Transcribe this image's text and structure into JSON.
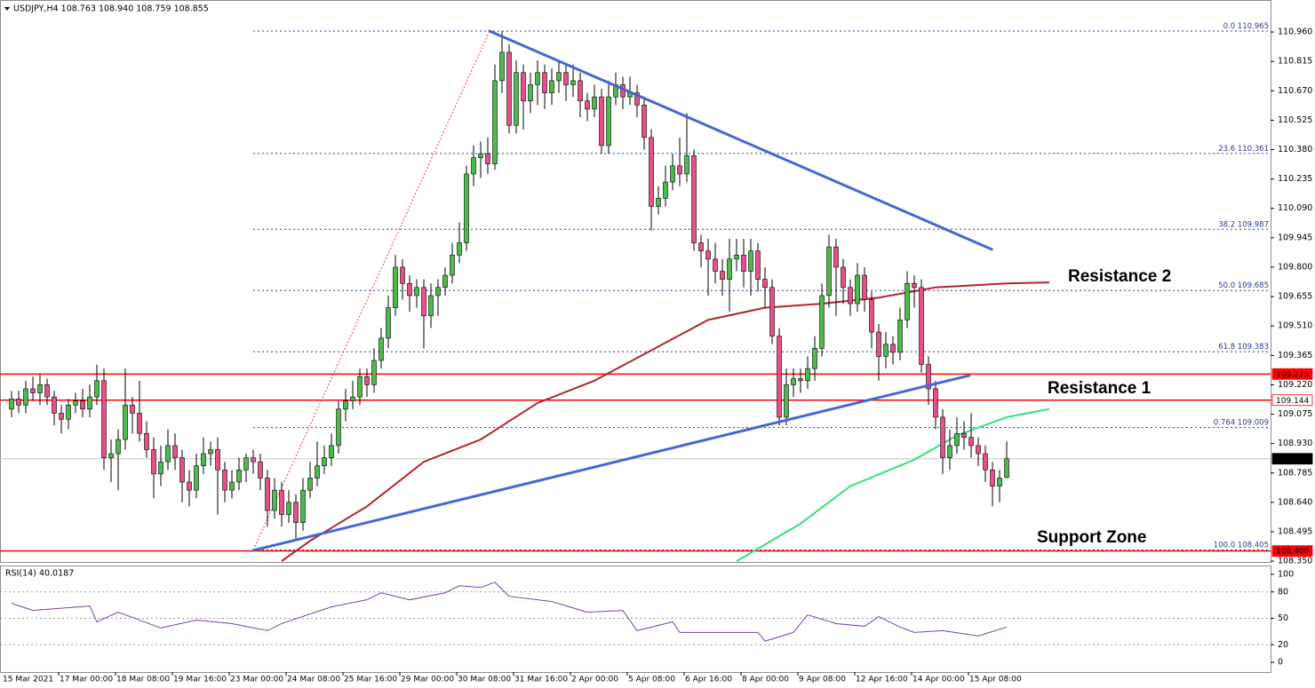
{
  "chart_data": {
    "type": "candlestick",
    "title": "USDJPY,H4 108.763 108.940 108.759 108.855",
    "ylim": [
      108.346,
      111.118
    ],
    "yticks": [
      {
        "value": 110.96,
        "label": "110.960"
      },
      110.815,
      {
        "value": 110.67,
        "label": "110.670"
      },
      110.525,
      {
        "value": 110.38,
        "label": "110.380"
      },
      110.235,
      {
        "value": 110.09,
        "label": "110.090"
      },
      109.945,
      {
        "value": 109.8,
        "label": "109.800"
      },
      109.655,
      {
        "value": 109.51,
        "label": "109.510"
      },
      109.365,
      {
        "value": 109.22,
        "label": "109.220"
      },
      109.075,
      {
        "value": 108.93,
        "label": "108.930"
      },
      108.785,
      {
        "value": 108.64,
        "label": "108.640"
      },
      108.495,
      {
        "value": 108.35,
        "label": "108.350"
      }
    ],
    "up_color": "#4cbb4c",
    "down_color": "#e8508a",
    "candles": [
      [
        109.1,
        109.19,
        109.06,
        109.15
      ],
      [
        109.15,
        109.19,
        109.08,
        109.12
      ],
      [
        109.12,
        109.24,
        109.08,
        109.2
      ],
      [
        109.2,
        109.26,
        109.14,
        109.18
      ],
      [
        109.18,
        109.27,
        109.12,
        109.22
      ],
      [
        109.22,
        109.25,
        109.12,
        109.16
      ],
      [
        109.16,
        109.19,
        109.02,
        109.08
      ],
      [
        109.08,
        109.12,
        108.98,
        109.05
      ],
      [
        109.05,
        109.15,
        109.0,
        109.12
      ],
      [
        109.12,
        109.18,
        109.08,
        109.14
      ],
      [
        109.14,
        109.2,
        109.06,
        109.1
      ],
      [
        109.1,
        109.22,
        109.06,
        109.16
      ],
      [
        109.16,
        109.32,
        109.12,
        109.24
      ],
      [
        109.24,
        109.3,
        108.8,
        108.86
      ],
      [
        108.86,
        108.95,
        108.74,
        108.88
      ],
      [
        108.88,
        109.0,
        108.7,
        108.95
      ],
      [
        108.95,
        109.3,
        108.9,
        109.12
      ],
      [
        109.12,
        109.16,
        108.98,
        109.08
      ],
      [
        109.08,
        109.24,
        108.94,
        108.98
      ],
      [
        108.98,
        109.04,
        108.86,
        108.9
      ],
      [
        108.9,
        108.96,
        108.66,
        108.78
      ],
      [
        108.78,
        108.92,
        108.72,
        108.84
      ],
      [
        108.84,
        109.0,
        108.8,
        108.92
      ],
      [
        108.92,
        108.98,
        108.8,
        108.86
      ],
      [
        108.86,
        108.9,
        108.64,
        108.74
      ],
      [
        108.74,
        108.8,
        108.62,
        108.7
      ],
      [
        108.7,
        108.88,
        108.66,
        108.82
      ],
      [
        108.82,
        108.96,
        108.78,
        108.88
      ],
      [
        108.88,
        108.94,
        108.82,
        108.9
      ],
      [
        108.9,
        108.96,
        108.58,
        108.8
      ],
      [
        108.8,
        108.84,
        108.64,
        108.7
      ],
      [
        108.7,
        108.8,
        108.66,
        108.74
      ],
      [
        108.74,
        108.86,
        108.7,
        108.8
      ],
      [
        108.8,
        108.88,
        108.74,
        108.86
      ],
      [
        108.86,
        108.9,
        108.78,
        108.84
      ],
      [
        108.84,
        108.88,
        108.7,
        108.76
      ],
      [
        108.76,
        108.8,
        108.52,
        108.6
      ],
      [
        108.6,
        108.76,
        108.56,
        108.7
      ],
      [
        108.7,
        108.74,
        108.52,
        108.58
      ],
      [
        108.58,
        108.7,
        108.54,
        108.64
      ],
      [
        108.64,
        108.68,
        108.46,
        108.54
      ],
      [
        108.54,
        108.76,
        108.5,
        108.7
      ],
      [
        108.7,
        108.84,
        108.66,
        108.76
      ],
      [
        108.76,
        108.94,
        108.72,
        108.82
      ],
      [
        108.82,
        108.92,
        108.78,
        108.86
      ],
      [
        108.86,
        108.98,
        108.82,
        108.92
      ],
      [
        108.92,
        109.14,
        108.88,
        109.1
      ],
      [
        109.1,
        109.2,
        109.04,
        109.14
      ],
      [
        109.14,
        109.24,
        109.1,
        109.16
      ],
      [
        109.16,
        109.3,
        109.12,
        109.26
      ],
      [
        109.26,
        109.3,
        109.16,
        109.22
      ],
      [
        109.22,
        109.4,
        109.18,
        109.34
      ],
      [
        109.34,
        109.5,
        109.3,
        109.45
      ],
      [
        109.45,
        109.66,
        109.4,
        109.6
      ],
      [
        109.6,
        109.86,
        109.56,
        109.8
      ],
      [
        109.8,
        109.84,
        109.64,
        109.72
      ],
      [
        109.72,
        109.76,
        109.58,
        109.66
      ],
      [
        109.66,
        109.74,
        109.6,
        109.7
      ],
      [
        109.7,
        109.74,
        109.4,
        109.56
      ],
      [
        109.56,
        109.72,
        109.5,
        109.66
      ],
      [
        109.66,
        109.74,
        109.56,
        109.7
      ],
      [
        109.7,
        109.8,
        109.66,
        109.76
      ],
      [
        109.76,
        109.92,
        109.72,
        109.86
      ],
      [
        109.86,
        110.02,
        109.82,
        109.92
      ],
      [
        109.92,
        110.3,
        109.88,
        110.26
      ],
      [
        110.26,
        110.4,
        110.2,
        110.34
      ],
      [
        110.34,
        110.42,
        110.24,
        110.36
      ],
      [
        110.36,
        110.44,
        110.26,
        110.31
      ],
      [
        110.31,
        110.8,
        110.28,
        110.72
      ],
      [
        110.72,
        110.965,
        110.66,
        110.86
      ],
      [
        110.86,
        110.9,
        110.46,
        110.5
      ],
      [
        110.5,
        110.82,
        110.46,
        110.76
      ],
      [
        110.76,
        110.8,
        110.48,
        110.62
      ],
      [
        110.62,
        110.76,
        110.56,
        110.7
      ],
      [
        110.7,
        110.82,
        110.6,
        110.76
      ],
      [
        110.76,
        110.8,
        110.58,
        110.66
      ],
      [
        110.66,
        110.78,
        110.6,
        110.72
      ],
      [
        110.72,
        110.82,
        110.66,
        110.76
      ],
      [
        110.76,
        110.8,
        110.62,
        110.7
      ],
      [
        110.7,
        110.8,
        110.64,
        110.72
      ],
      [
        110.72,
        110.76,
        110.54,
        110.62
      ],
      [
        110.62,
        110.66,
        110.52,
        110.58
      ],
      [
        110.58,
        110.7,
        110.54,
        110.64
      ],
      [
        110.64,
        110.68,
        110.36,
        110.4
      ],
      [
        110.4,
        110.72,
        110.36,
        110.64
      ],
      [
        110.64,
        110.76,
        110.6,
        110.7
      ],
      [
        110.7,
        110.74,
        110.58,
        110.64
      ],
      [
        110.64,
        110.74,
        110.6,
        110.66
      ],
      [
        110.66,
        110.7,
        110.54,
        110.6
      ],
      [
        110.6,
        110.64,
        110.38,
        110.44
      ],
      [
        110.44,
        110.48,
        109.98,
        110.1
      ],
      [
        110.1,
        110.2,
        110.06,
        110.14
      ],
      [
        110.14,
        110.3,
        110.1,
        110.22
      ],
      [
        110.22,
        110.36,
        110.18,
        110.3
      ],
      [
        110.3,
        110.44,
        110.2,
        110.26
      ],
      [
        110.26,
        110.56,
        110.22,
        110.35
      ],
      [
        110.35,
        110.38,
        109.88,
        109.92
      ],
      [
        109.92,
        109.96,
        109.8,
        109.88
      ],
      [
        109.88,
        109.94,
        109.66,
        109.84
      ],
      [
        109.84,
        109.92,
        109.72,
        109.78
      ],
      [
        109.78,
        109.84,
        109.66,
        109.74
      ],
      [
        109.74,
        109.94,
        109.58,
        109.84
      ],
      [
        109.84,
        109.94,
        109.78,
        109.86
      ],
      [
        109.86,
        109.94,
        109.7,
        109.78
      ],
      [
        109.78,
        109.94,
        109.66,
        109.88
      ],
      [
        109.88,
        109.92,
        109.68,
        109.74
      ],
      [
        109.74,
        109.8,
        109.6,
        109.7
      ],
      [
        109.7,
        109.74,
        109.42,
        109.46
      ],
      [
        109.46,
        109.5,
        109.02,
        109.06
      ],
      [
        109.06,
        109.3,
        109.02,
        109.22
      ],
      [
        109.22,
        109.3,
        109.16,
        109.25
      ],
      [
        109.25,
        109.3,
        109.18,
        109.24
      ],
      [
        109.24,
        109.36,
        109.2,
        109.3
      ],
      [
        109.3,
        109.46,
        109.24,
        109.4
      ],
      [
        109.4,
        109.72,
        109.36,
        109.66
      ],
      [
        109.66,
        109.96,
        109.6,
        109.9
      ],
      [
        109.9,
        109.94,
        109.56,
        109.8
      ],
      [
        109.8,
        109.84,
        109.62,
        109.7
      ],
      [
        109.7,
        109.74,
        109.56,
        109.62
      ],
      [
        109.62,
        109.82,
        109.58,
        109.76
      ],
      [
        109.76,
        109.8,
        109.58,
        109.64
      ],
      [
        109.64,
        109.68,
        109.4,
        109.48
      ],
      [
        109.48,
        109.52,
        109.24,
        109.36
      ],
      [
        109.36,
        109.48,
        109.3,
        109.42
      ],
      [
        109.42,
        109.46,
        109.32,
        109.38
      ],
      [
        109.38,
        109.6,
        109.34,
        109.54
      ],
      [
        109.54,
        109.78,
        109.5,
        109.72
      ],
      [
        109.72,
        109.76,
        109.6,
        109.7
      ],
      [
        109.7,
        109.74,
        109.28,
        109.32
      ],
      [
        109.32,
        109.36,
        109.12,
        109.2
      ],
      [
        109.2,
        109.24,
        109.0,
        109.06
      ],
      [
        109.06,
        109.1,
        108.78,
        108.86
      ],
      [
        108.86,
        109.0,
        108.8,
        108.92
      ],
      [
        108.92,
        109.06,
        108.88,
        108.98
      ],
      [
        108.98,
        109.04,
        108.9,
        108.96
      ],
      [
        108.96,
        109.08,
        108.86,
        108.92
      ],
      [
        108.92,
        108.96,
        108.82,
        108.88
      ],
      [
        108.88,
        108.92,
        108.74,
        108.8
      ],
      [
        108.8,
        108.84,
        108.62,
        108.72
      ],
      [
        108.72,
        108.8,
        108.64,
        108.76
      ],
      [
        108.763,
        108.94,
        108.759,
        108.855
      ]
    ],
    "moving_averages": [
      {
        "color": "#b0262a",
        "points": [
          [
            38,
            108.35
          ],
          [
            42,
            108.45
          ],
          [
            50,
            108.62
          ],
          [
            58,
            108.84
          ],
          [
            66,
            108.95
          ],
          [
            74,
            109.13
          ],
          [
            82,
            109.24
          ],
          [
            90,
            109.39
          ],
          [
            98,
            109.54
          ],
          [
            106,
            109.6
          ],
          [
            114,
            109.62
          ],
          [
            122,
            109.65
          ],
          [
            130,
            109.7
          ],
          [
            140,
            109.72
          ],
          [
            146,
            109.725
          ]
        ]
      },
      {
        "color": "#33e07a",
        "points": [
          [
            102,
            108.35
          ],
          [
            111,
            108.535
          ],
          [
            118,
            108.72
          ],
          [
            127,
            108.85
          ],
          [
            133,
            108.97
          ],
          [
            140,
            109.06
          ],
          [
            146,
            109.1
          ]
        ]
      }
    ],
    "trendlines": [
      {
        "color": "#4666d4",
        "from": [
          67.25,
          110.965
        ],
        "to": [
          137.9,
          109.888
        ]
      },
      {
        "color": "#4666d4",
        "from": [
          34,
          108.403
        ],
        "to": [
          134.75,
          109.266
        ]
      }
    ],
    "fib_line": {
      "color": "#e04040",
      "from": [
        34,
        108.405
      ],
      "to": [
        67.25,
        110.965
      ]
    },
    "fib_color": "#2b3a8c",
    "fib_levels": [
      {
        "level": "0.0",
        "price": 110.965
      },
      {
        "level": "23.6",
        "price": 110.361
      },
      {
        "level": "38.2",
        "price": 109.987
      },
      {
        "level": "50.0",
        "price": 109.685
      },
      {
        "level": "61.8",
        "price": 109.383
      },
      {
        "level": "0.764",
        "price": 109.009
      },
      {
        "level": "100.0",
        "price": 108.405
      }
    ],
    "price_tags": [
      {
        "tick": 109.273,
        "bg": "#ff0000",
        "fg": "#ffffff",
        "line": "#ff0000"
      },
      {
        "tick": 109.144,
        "bg": "#ffffff",
        "fg": "#000000",
        "line": "#ff0000"
      },
      {
        "tick": 108.855,
        "bg": "#000000",
        "fg": "#ffffff",
        "line": "#c8c8c8"
      },
      {
        "tick": {
          "value": 108.4,
          "label": "108.400"
        },
        "bg": "#ff0000",
        "fg": "#ffffff",
        "line": "#ff0000"
      }
    ],
    "annotations": [
      {
        "text": "Resistance 2",
        "color": "#e8322d"
      },
      {
        "text": "Resistance 1",
        "color": "#e8322d"
      },
      {
        "text": "Support Zone",
        "color": "#2db34a"
      }
    ],
    "xlabels": [
      "15 Mar 2021",
      "17 Mar 00:00",
      "18 Mar 08:00",
      "19 Mar 16:00",
      "23 Mar 00:00",
      "24 Mar 08:00",
      "25 Mar 16:00",
      "29 Mar 00:00",
      "30 Mar 08:00",
      "31 Mar 16:00",
      "2 Apr 00:00",
      "5 Apr 08:00",
      "6 Apr 16:00",
      "8 Apr 00:00",
      "9 Apr 08:00",
      "12 Apr 16:00",
      "14 Apr 00:00",
      "15 Apr 08:00"
    ],
    "rsi": {
      "title": "RSI(14) 40.0187",
      "color": "#7a3fa6",
      "ylim": [
        -11,
        110
      ],
      "yticks": [
        100,
        80,
        50,
        20,
        0
      ],
      "levels": [
        80,
        50,
        20
      ],
      "points": [
        [
          0,
          67
        ],
        [
          3,
          59
        ],
        [
          11,
          64
        ],
        [
          12,
          46
        ],
        [
          15,
          57
        ],
        [
          21,
          39
        ],
        [
          26,
          48
        ],
        [
          31,
          44
        ],
        [
          36,
          36
        ],
        [
          38,
          44
        ],
        [
          45,
          63
        ],
        [
          50,
          71
        ],
        [
          52,
          79
        ],
        [
          56,
          71
        ],
        [
          61,
          79
        ],
        [
          63,
          87
        ],
        [
          66,
          85
        ],
        [
          68,
          91
        ],
        [
          70,
          75
        ],
        [
          76,
          69
        ],
        [
          81,
          57
        ],
        [
          86,
          59
        ],
        [
          88,
          36
        ],
        [
          93,
          46
        ],
        [
          94,
          34
        ],
        [
          98,
          34
        ],
        [
          105,
          34
        ],
        [
          106,
          24
        ],
        [
          110,
          34
        ],
        [
          112,
          54
        ],
        [
          116,
          44
        ],
        [
          120,
          41
        ],
        [
          122,
          52
        ],
        [
          125,
          40
        ],
        [
          127,
          34
        ],
        [
          131,
          36
        ],
        [
          136,
          30
        ],
        [
          140,
          40
        ]
      ]
    }
  }
}
